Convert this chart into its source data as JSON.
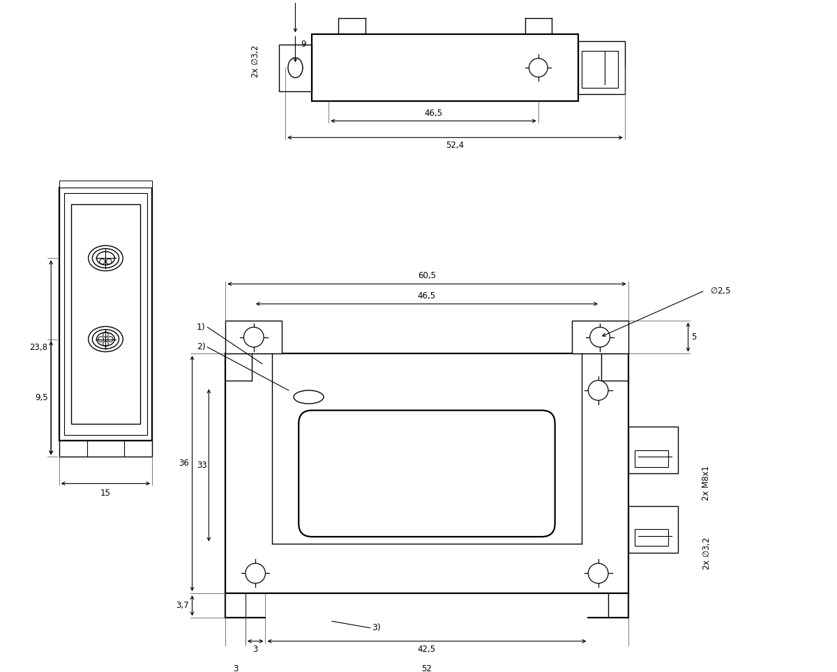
{
  "bg_color": "#ffffff",
  "lc": "#000000",
  "lw": 1.0,
  "lw2": 1.6,
  "fs": 8.5,
  "fig_w": 12.0,
  "fig_h": 9.64,
  "dpi": 100
}
